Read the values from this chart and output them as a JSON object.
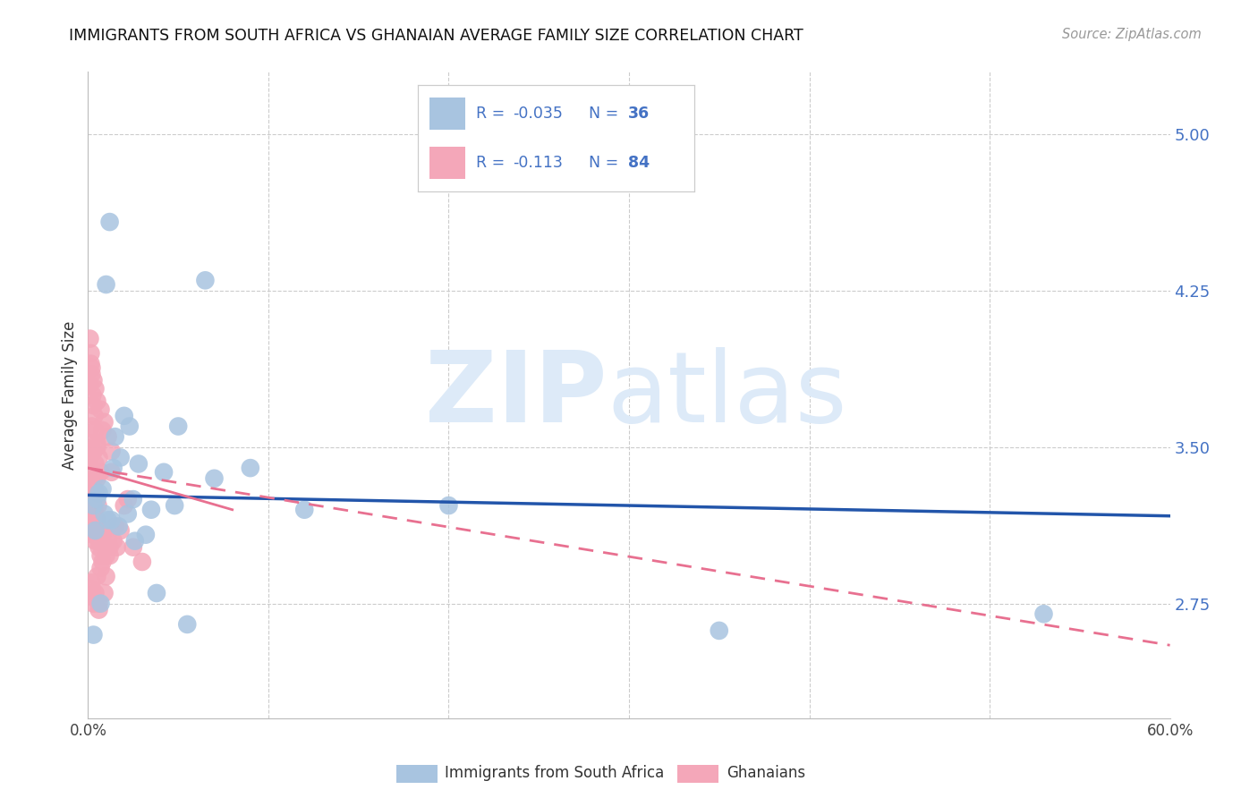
{
  "title": "IMMIGRANTS FROM SOUTH AFRICA VS GHANAIAN AVERAGE FAMILY SIZE CORRELATION CHART",
  "source": "Source: ZipAtlas.com",
  "ylabel": "Average Family Size",
  "right_yticks": [
    2.75,
    3.5,
    4.25,
    5.0
  ],
  "legend_label_blue": "Immigrants from South Africa",
  "legend_label_pink": "Ghanaians",
  "blue_scatter_x": [
    0.3,
    0.5,
    0.8,
    1.0,
    1.2,
    1.5,
    1.8,
    2.0,
    2.3,
    2.8,
    3.5,
    4.2,
    5.0,
    6.5,
    0.4,
    0.6,
    0.9,
    1.1,
    1.4,
    1.7,
    2.2,
    2.6,
    3.2,
    4.8,
    7.0,
    9.0,
    12.0,
    0.3,
    0.7,
    1.3,
    2.5,
    3.8,
    5.5,
    20.0,
    35.0,
    53.0
  ],
  "blue_scatter_y": [
    3.22,
    3.25,
    3.3,
    4.28,
    4.58,
    3.55,
    3.45,
    3.65,
    3.6,
    3.42,
    3.2,
    3.38,
    3.6,
    4.3,
    3.1,
    3.28,
    3.18,
    3.15,
    3.4,
    3.12,
    3.18,
    3.05,
    3.08,
    3.22,
    3.35,
    3.4,
    3.2,
    2.6,
    2.75,
    3.15,
    3.25,
    2.8,
    2.65,
    3.22,
    2.62,
    2.7
  ],
  "pink_scatter_x": [
    0.1,
    0.15,
    0.2,
    0.25,
    0.3,
    0.35,
    0.4,
    0.45,
    0.5,
    0.55,
    0.1,
    0.15,
    0.2,
    0.25,
    0.3,
    0.35,
    0.4,
    0.5,
    0.6,
    0.7,
    0.1,
    0.15,
    0.2,
    0.25,
    0.3,
    0.4,
    0.5,
    0.6,
    0.7,
    0.8,
    0.1,
    0.15,
    0.2,
    0.3,
    0.4,
    0.5,
    0.7,
    0.9,
    1.1,
    1.3,
    0.1,
    0.2,
    0.3,
    0.4,
    0.6,
    0.8,
    1.0,
    1.2,
    1.5,
    2.0,
    0.2,
    0.3,
    0.5,
    0.7,
    1.0,
    1.4,
    1.8,
    2.5,
    3.0,
    0.15,
    0.25,
    0.35,
    0.5,
    0.8,
    1.2,
    0.2,
    0.4,
    0.6,
    1.0,
    0.3,
    0.5,
    0.8,
    1.3,
    2.2,
    0.25,
    0.45,
    0.7,
    1.1,
    1.6,
    0.3,
    0.6,
    0.9
  ],
  "pink_scatter_y": [
    3.45,
    3.52,
    3.6,
    3.38,
    3.48,
    3.35,
    3.42,
    3.28,
    3.35,
    3.22,
    3.8,
    3.9,
    3.85,
    3.75,
    3.7,
    3.65,
    3.58,
    3.5,
    3.45,
    3.38,
    3.25,
    3.3,
    3.2,
    3.15,
    3.1,
    3.05,
    3.08,
    3.02,
    2.98,
    2.95,
    4.02,
    3.95,
    3.88,
    3.82,
    3.78,
    3.72,
    3.68,
    3.62,
    3.55,
    3.48,
    3.18,
    3.12,
    3.08,
    3.15,
    3.05,
    3.1,
    3.02,
    2.98,
    3.12,
    3.22,
    2.82,
    2.78,
    2.88,
    2.92,
    2.98,
    3.05,
    3.1,
    3.02,
    2.95,
    3.3,
    3.25,
    3.2,
    3.15,
    3.08,
    3.02,
    2.85,
    2.8,
    2.75,
    2.88,
    3.48,
    3.52,
    3.58,
    3.38,
    3.25,
    3.15,
    3.12,
    3.08,
    3.05,
    3.02,
    2.75,
    2.72,
    2.8
  ],
  "blue_line_x0": 0,
  "blue_line_y0": 3.27,
  "blue_line_x1": 60,
  "blue_line_y1": 3.17,
  "pink_solid_x0": 0,
  "pink_solid_y0": 3.4,
  "pink_solid_x1": 8,
  "pink_solid_y1": 3.2,
  "pink_dash_x0": 0,
  "pink_dash_y0": 3.4,
  "pink_dash_x1": 60,
  "pink_dash_y1": 2.55,
  "xlim": [
    0,
    60
  ],
  "ylim": [
    2.2,
    5.3
  ],
  "background_color": "#ffffff",
  "blue_color": "#a8c4e0",
  "pink_color": "#f4a7b9",
  "blue_line_color": "#2255aa",
  "pink_line_color": "#e87090",
  "grid_color": "#cccccc",
  "title_color": "#111111",
  "right_axis_color": "#4472c4",
  "legend_text_color": "#4472c4"
}
